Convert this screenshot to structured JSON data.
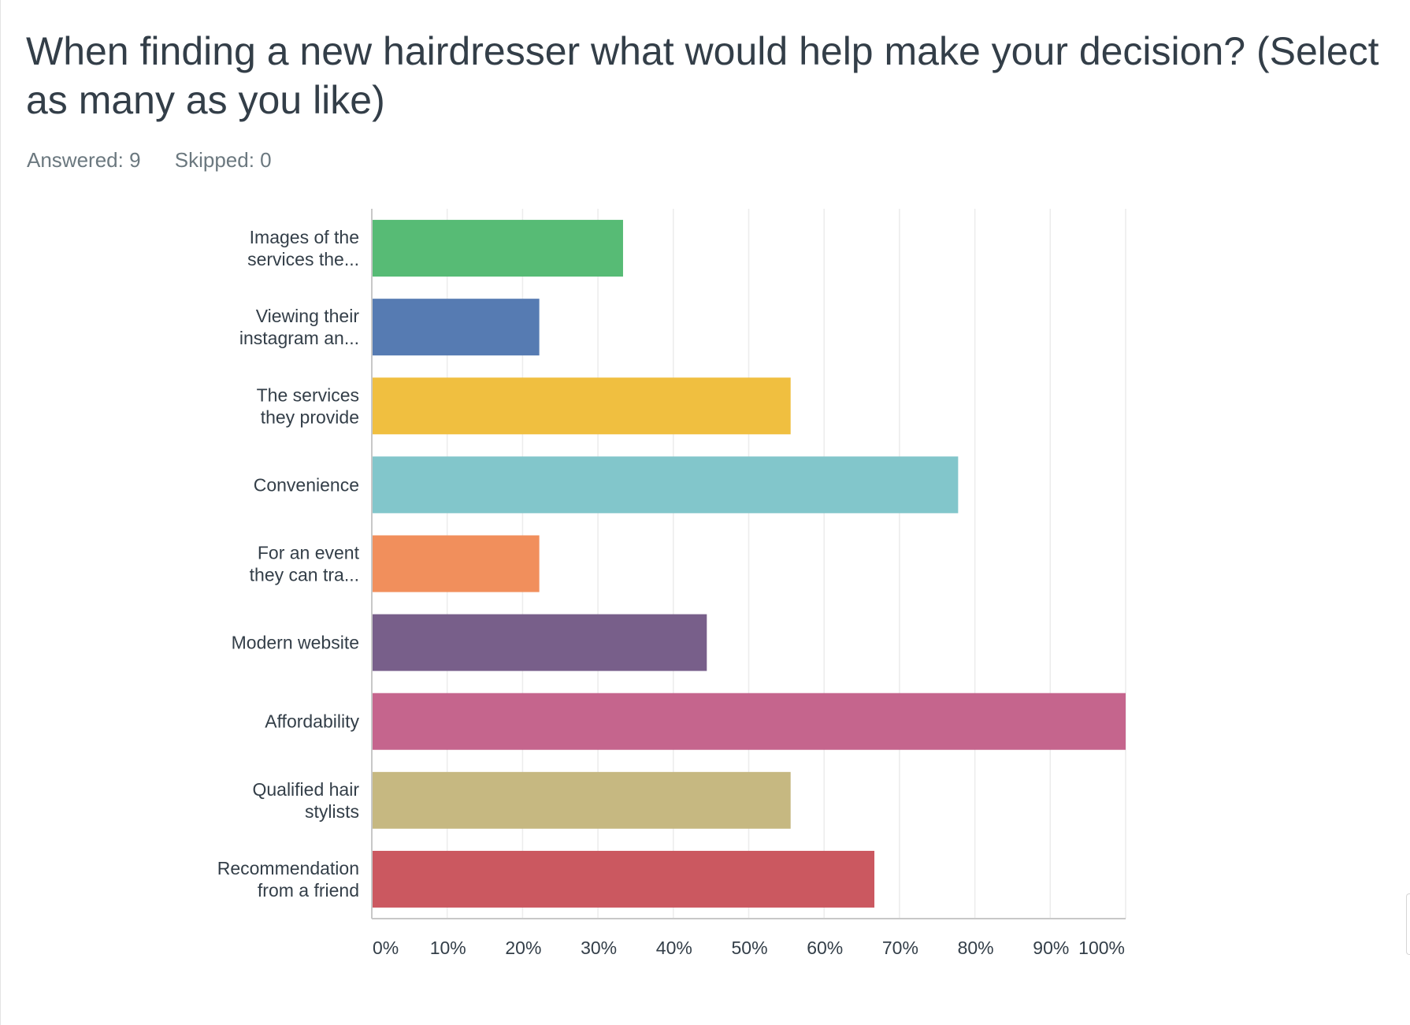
{
  "header": {
    "title": "When finding a new hairdresser what would help make your decision? (Select as many as you like)",
    "answered": "Answered: 9",
    "skipped": "Skipped: 0"
  },
  "chart_data": {
    "type": "bar",
    "orientation": "horizontal",
    "title": "",
    "xlabel": "",
    "ylabel": "",
    "xlim": [
      0,
      100
    ],
    "grid": true,
    "legend": "none",
    "categories": [
      [
        "Images of the",
        "services the..."
      ],
      [
        "Viewing their",
        "instagram an..."
      ],
      [
        "The services",
        "they provide"
      ],
      [
        "Convenience"
      ],
      [
        "For an event",
        "they can tra..."
      ],
      [
        "Modern website"
      ],
      [
        "Affordability"
      ],
      [
        "Qualified hair",
        "stylists"
      ],
      [
        "Recommendation",
        "from a friend"
      ]
    ],
    "values": [
      33.33,
      22.22,
      55.56,
      77.78,
      22.22,
      44.44,
      100,
      55.56,
      66.67
    ],
    "colors": [
      "#57bb75",
      "#567bb2",
      "#f0bf40",
      "#82c6cb",
      "#f18f5c",
      "#785f8a",
      "#c5658d",
      "#c6b881",
      "#cb5860"
    ],
    "ticks": [
      "0%",
      "10%",
      "20%",
      "30%",
      "40%",
      "50%",
      "60%",
      "70%",
      "80%",
      "90%",
      "100%"
    ]
  }
}
